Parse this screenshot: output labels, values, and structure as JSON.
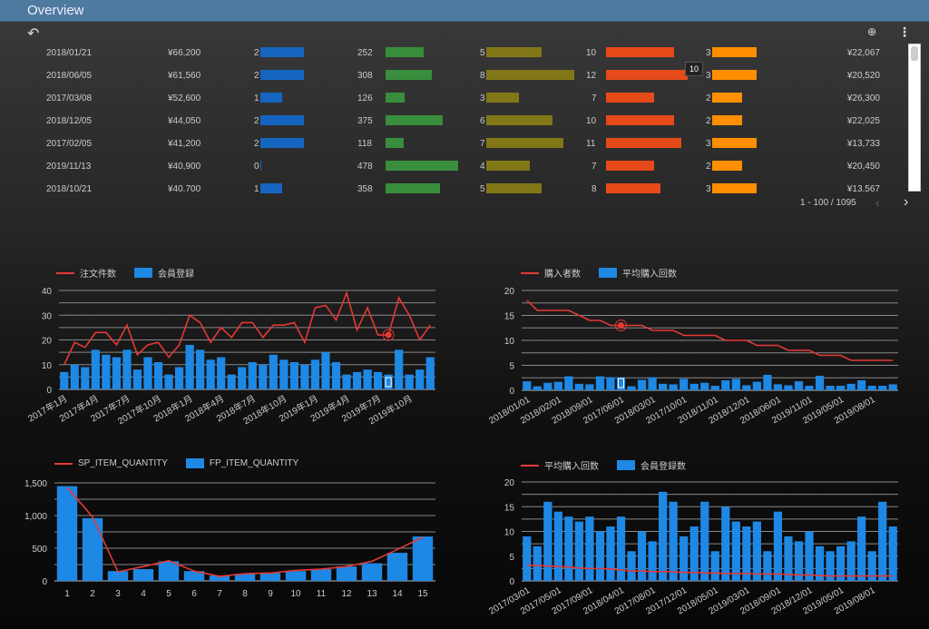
{
  "header": {
    "title": "Overview"
  },
  "toolbar": {
    "undo_icon": "undo-icon",
    "explore_icon": "zoom-search-icon",
    "menu_icon": "more-vert-icon"
  },
  "colors": {
    "c1": "#1565c0",
    "c2": "#388e3c",
    "c3": "#827717",
    "c4": "#e64a19",
    "c5": "#ff8f00",
    "line": "#e53935",
    "bar": "#1e88e5",
    "header": "#4f7aa0"
  },
  "table": {
    "rows": [
      {
        "date": "2018/01/21",
        "price": "¥66,200",
        "v1": 2,
        "v2": 252,
        "v3": 5,
        "v4": 10,
        "v5": 3,
        "avg": "¥22,067"
      },
      {
        "date": "2018/06/05",
        "price": "¥61,560",
        "v1": 2,
        "v2": 308,
        "v3": 8,
        "v4": 12,
        "v5": 3,
        "avg": "¥20,520"
      },
      {
        "date": "2017/03/08",
        "price": "¥52,600",
        "v1": 1,
        "v2": 126,
        "v3": 3,
        "v4": 7,
        "v5": 2,
        "avg": "¥26,300"
      },
      {
        "date": "2018/12/05",
        "price": "¥44,050",
        "v1": 2,
        "v2": 375,
        "v3": 6,
        "v4": 10,
        "v5": 2,
        "avg": "¥22,025"
      },
      {
        "date": "2017/02/05",
        "price": "¥41,200",
        "v1": 2,
        "v2": 118,
        "v3": 7,
        "v4": 11,
        "v5": 3,
        "avg": "¥13,733"
      },
      {
        "date": "2019/11/13",
        "price": "¥40,900",
        "v1": 0,
        "v2": 478,
        "v3": 4,
        "v4": 7,
        "v5": 2,
        "avg": "¥20,450"
      },
      {
        "date": "2018/10/21",
        "price": "¥40.700",
        "v1": 1,
        "v2": 358,
        "v3": 5,
        "v4": 8,
        "v5": 3,
        "avg": "¥13.567"
      }
    ],
    "tooltip": "10",
    "pagination": "1 - 100 / 1095"
  },
  "chart_data": [
    {
      "type": "bar+line",
      "legend": {
        "line": "注文件数",
        "bar": "会員登録"
      },
      "ylim": [
        0,
        40
      ],
      "yticks": [
        0,
        10,
        20,
        30,
        40
      ],
      "tick_labels": [
        "2017年1月",
        "2017年4月",
        "2017年7月",
        "2017年10月",
        "2018年1月",
        "2018年4月",
        "2018年7月",
        "2018年10月",
        "2019年1月",
        "2019年4月",
        "2019年7月",
        "2019年10月"
      ],
      "bar_values": [
        7,
        10,
        9,
        16,
        14,
        13,
        16,
        8,
        13,
        11,
        6,
        9,
        18,
        16,
        12,
        13,
        6,
        9,
        11,
        10,
        14,
        12,
        11,
        10,
        12,
        15,
        11,
        6,
        7,
        8,
        7,
        6,
        16,
        6,
        8,
        13
      ],
      "line_values": [
        10,
        19,
        17,
        23,
        23,
        18,
        26,
        14,
        18,
        19,
        13,
        18,
        30,
        27,
        19,
        25,
        21,
        27,
        27,
        21,
        26,
        26,
        27,
        19,
        33,
        34,
        28,
        39,
        24,
        33,
        22,
        22,
        37,
        30,
        20,
        26
      ],
      "highlight": 31
    },
    {
      "type": "bar+line",
      "legend": {
        "line": "購入者数",
        "bar": "平均購入回数"
      },
      "ylim": [
        0,
        20
      ],
      "yticks": [
        0,
        5,
        10,
        15,
        20
      ],
      "tick_labels": [
        "2018/01/01",
        "2018/02/01",
        "2018/09/01",
        "2017/06/01",
        "2018/03/01",
        "2017/10/01",
        "2018/11/01",
        "2018/12/01",
        "2018/06/01",
        "2019/11/01",
        "2019/05/01",
        "2019/08/01"
      ],
      "bar_values": [
        1.8,
        0.8,
        1.5,
        1.7,
        2.8,
        1.3,
        1.2,
        2.8,
        2.6,
        2.6,
        0.8,
        2.1,
        2.6,
        1.3,
        1.2,
        2.3,
        1.3,
        1.5,
        0.9,
        2.0,
        2.3,
        1.0,
        1.7,
        3.1,
        1.2,
        1.0,
        1.8,
        0.9,
        2.9,
        0.9,
        0.9,
        1.3,
        2.0,
        0.9,
        0.9,
        1.2
      ],
      "line_values": [
        18,
        16,
        16,
        16,
        16,
        15,
        14,
        14,
        13,
        13,
        13,
        13,
        12,
        12,
        12,
        11,
        11,
        11,
        11,
        10,
        10,
        10,
        9,
        9,
        9,
        8,
        8,
        8,
        7,
        7,
        7,
        6,
        6,
        6,
        6,
        6
      ],
      "highlight": 9
    },
    {
      "type": "bar+line",
      "legend": {
        "line": "SP_ITEM_QUANTITY",
        "bar": "FP_ITEM_QUANTITY"
      },
      "ylim": [
        0,
        1500
      ],
      "yticks": [
        0,
        500,
        1000,
        1500
      ],
      "ytick_labels": [
        "0",
        "500",
        "1,000",
        "1,500"
      ],
      "tick_labels": [
        "1",
        "2",
        "3",
        "4",
        "5",
        "6",
        "7",
        "8",
        "9",
        "10",
        "11",
        "12",
        "13",
        "14",
        "15"
      ],
      "bar_values": [
        1450,
        960,
        150,
        180,
        300,
        150,
        80,
        110,
        120,
        150,
        180,
        220,
        270,
        430,
        680
      ],
      "line_values": [
        1430,
        980,
        140,
        220,
        310,
        150,
        70,
        110,
        120,
        160,
        180,
        220,
        300,
        480,
        670
      ]
    },
    {
      "type": "bar+line",
      "legend": {
        "line": "平均購入回数",
        "bar": "会員登録数"
      },
      "ylim": [
        0,
        20
      ],
      "yticks": [
        0,
        5,
        10,
        15,
        20
      ],
      "tick_labels": [
        "2017/03/01",
        "2017/05/01",
        "2017/09/01",
        "2018/04/01",
        "2017/08/01",
        "2017/12/01",
        "2018/05/01",
        "2019/03/01",
        "2018/09/01",
        "2018/12/01",
        "2019/05/01",
        "2019/08/01"
      ],
      "bar_values": [
        9,
        7,
        16,
        14,
        13,
        12,
        13,
        10,
        11,
        13,
        6,
        10,
        8,
        18,
        16,
        9,
        11,
        16,
        6,
        15,
        12,
        11,
        12,
        6,
        14,
        9,
        8,
        10,
        7,
        6,
        7,
        8,
        13,
        6,
        16,
        11
      ],
      "line_values": [
        3.2,
        3.1,
        3.0,
        2.9,
        2.8,
        2.6,
        2.5,
        2.5,
        2.4,
        2.2,
        2.0,
        2.0,
        1.9,
        1.9,
        1.8,
        1.7,
        1.7,
        1.6,
        1.6,
        1.5,
        1.5,
        1.5,
        1.4,
        1.4,
        1.4,
        1.3,
        1.2,
        1.2,
        1.1,
        1.0,
        1.0,
        1.0,
        1.0,
        1.0,
        1.0,
        1.0
      ]
    }
  ]
}
